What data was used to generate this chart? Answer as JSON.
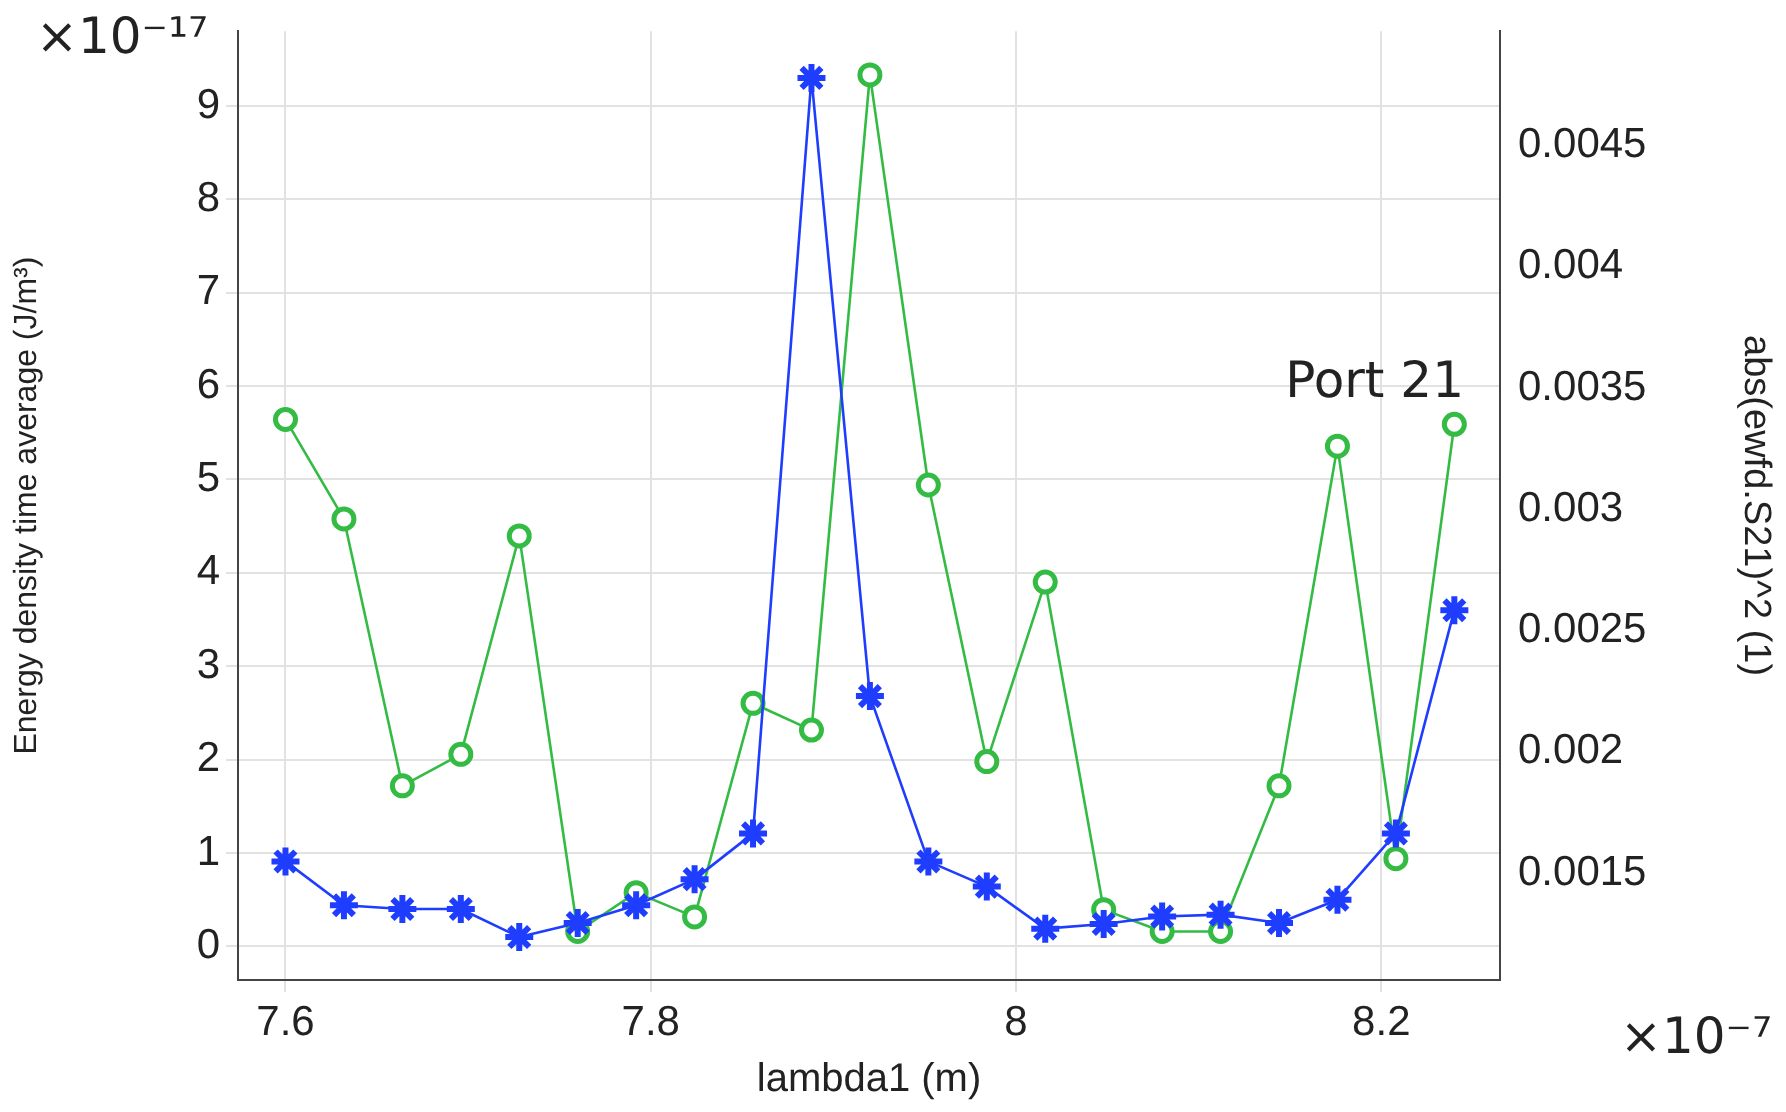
{
  "chart_data": {
    "type": "line",
    "xlabel": "lambda1 (m)",
    "ylabel": "Energy density time average (J/m³)",
    "y2label": "abs(ewfd.S21)^2 (1)",
    "annotations": [
      "Port 21",
      "×10⁻¹⁷",
      "×10⁻⁷"
    ],
    "x": [
      7.6,
      7.632,
      7.664,
      7.696,
      7.728,
      7.76,
      7.792,
      7.824,
      7.856,
      7.888,
      7.92,
      7.952,
      7.984,
      8.016,
      8.048,
      8.08,
      8.112,
      8.144,
      8.176,
      8.208,
      8.24
    ],
    "series": [
      {
        "color": "#1f3dff",
        "marker": "cross",
        "values": [
          0.91,
          0.44,
          0.4,
          0.4,
          0.1,
          0.25,
          0.44,
          0.72,
          1.21,
          9.3,
          2.68,
          0.91,
          0.64,
          0.19,
          0.24,
          0.32,
          0.34,
          0.25,
          0.5,
          1.21,
          3.6
        ]
      },
      {
        "color": "#33bb44",
        "marker": "circle",
        "axis": "y2",
        "values": [
          0.00337,
          0.00296,
          0.00186,
          0.00199,
          0.00289,
          0.00126,
          0.00142,
          0.00132,
          0.0022,
          0.00209,
          0.00479,
          0.0031,
          0.00196,
          0.0027,
          0.00135,
          0.00126,
          0.00126,
          0.00186,
          0.00326,
          0.00156,
          0.00335
        ]
      }
    ],
    "xlim": [
      7.574,
      8.265
    ],
    "xticks": [
      7.6,
      7.8,
      8,
      8.2
    ],
    "ylim": [
      -0.36,
      9.8
    ],
    "yticks": [
      0,
      1,
      2,
      3,
      4,
      5,
      6,
      7,
      8,
      9
    ],
    "y2lim": [
      0.00106,
      0.00497
    ],
    "y2ticks": [
      0.0015,
      0.002,
      0.0025,
      0.003,
      0.0035,
      0.004,
      0.0045
    ],
    "grid": true,
    "legend": false,
    "line_style": "solid"
  }
}
